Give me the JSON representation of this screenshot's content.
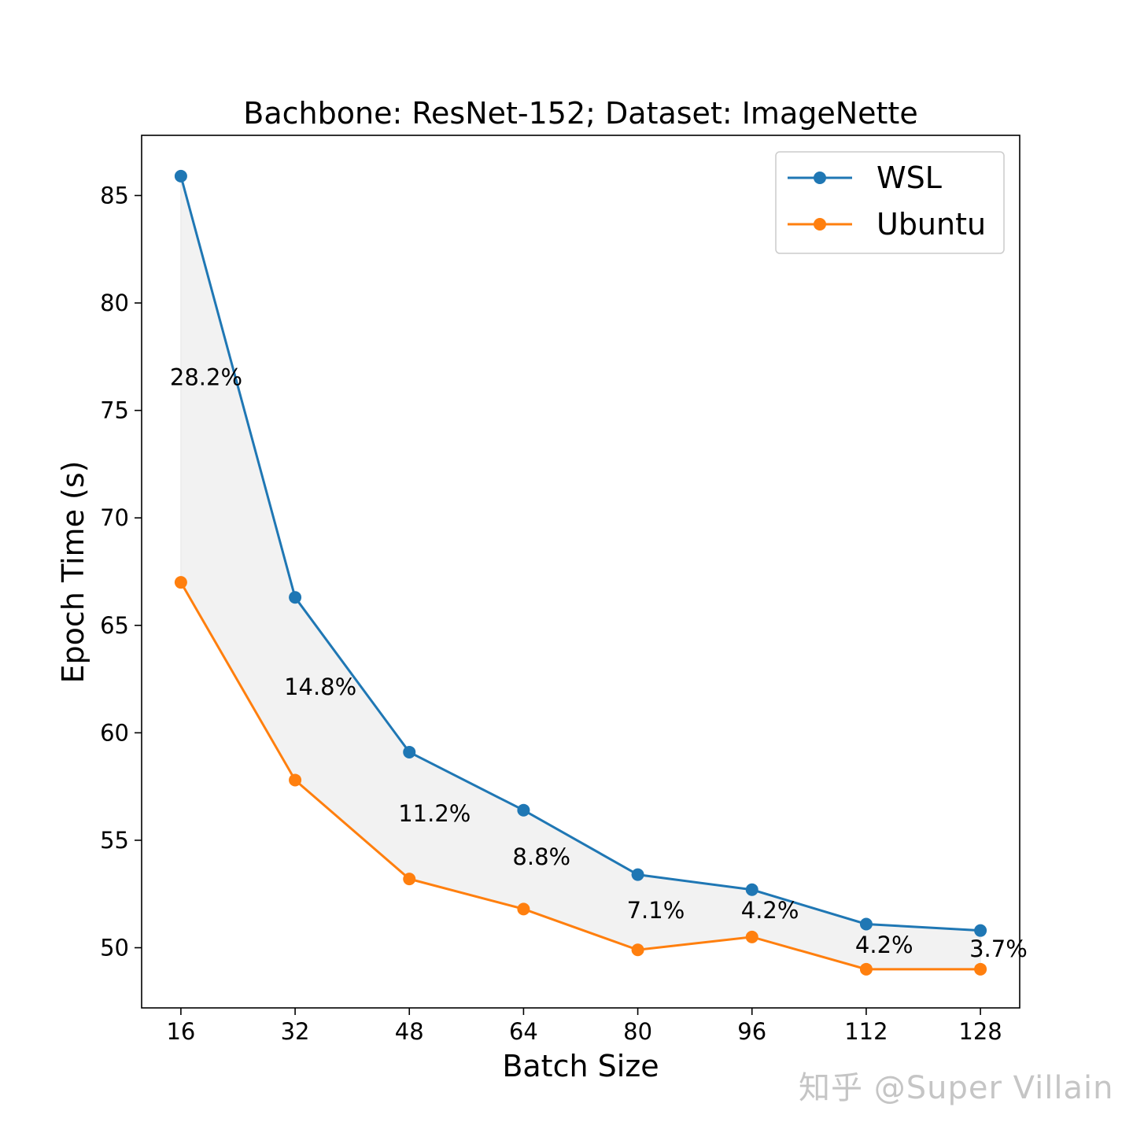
{
  "chart_data": {
    "type": "line",
    "title": "Bachbone: ResNet-152; Dataset: ImageNette",
    "xlabel": "Batch Size",
    "ylabel": "Epoch Time (s)",
    "x": [
      16,
      32,
      48,
      64,
      80,
      96,
      112,
      128
    ],
    "xlim": [
      10.5,
      133.5
    ],
    "ylim": [
      47.2,
      87.8
    ],
    "xticks": [
      16,
      32,
      48,
      64,
      80,
      96,
      112,
      128
    ],
    "yticks": [
      50,
      55,
      60,
      65,
      70,
      75,
      80,
      85
    ],
    "series": [
      {
        "name": "WSL",
        "color": "#1f77b4",
        "values": [
          85.9,
          66.3,
          59.1,
          56.4,
          53.4,
          52.7,
          51.1,
          50.8
        ]
      },
      {
        "name": "Ubuntu",
        "color": "#ff7f0e",
        "values": [
          67.0,
          57.8,
          53.2,
          51.8,
          49.9,
          50.5,
          49.0,
          49.0
        ]
      }
    ],
    "fill_between": {
      "series": [
        "WSL",
        "Ubuntu"
      ],
      "color": "#f2f2f2"
    },
    "annotations": [
      {
        "x": 16,
        "y": 76.5,
        "text": "28.2%"
      },
      {
        "x": 32,
        "y": 62.1,
        "text": "14.8%"
      },
      {
        "x": 48,
        "y": 56.2,
        "text": "11.2%"
      },
      {
        "x": 64,
        "y": 54.2,
        "text": "8.8%"
      },
      {
        "x": 80,
        "y": 51.7,
        "text": "7.1%"
      },
      {
        "x": 96,
        "y": 51.7,
        "text": "4.2%"
      },
      {
        "x": 112,
        "y": 50.1,
        "text": "4.2%"
      },
      {
        "x": 128,
        "y": 49.9,
        "text": "3.7%"
      }
    ],
    "legend": {
      "position": "top-right"
    },
    "grid": false
  },
  "watermark": "知乎 @Super Villain"
}
